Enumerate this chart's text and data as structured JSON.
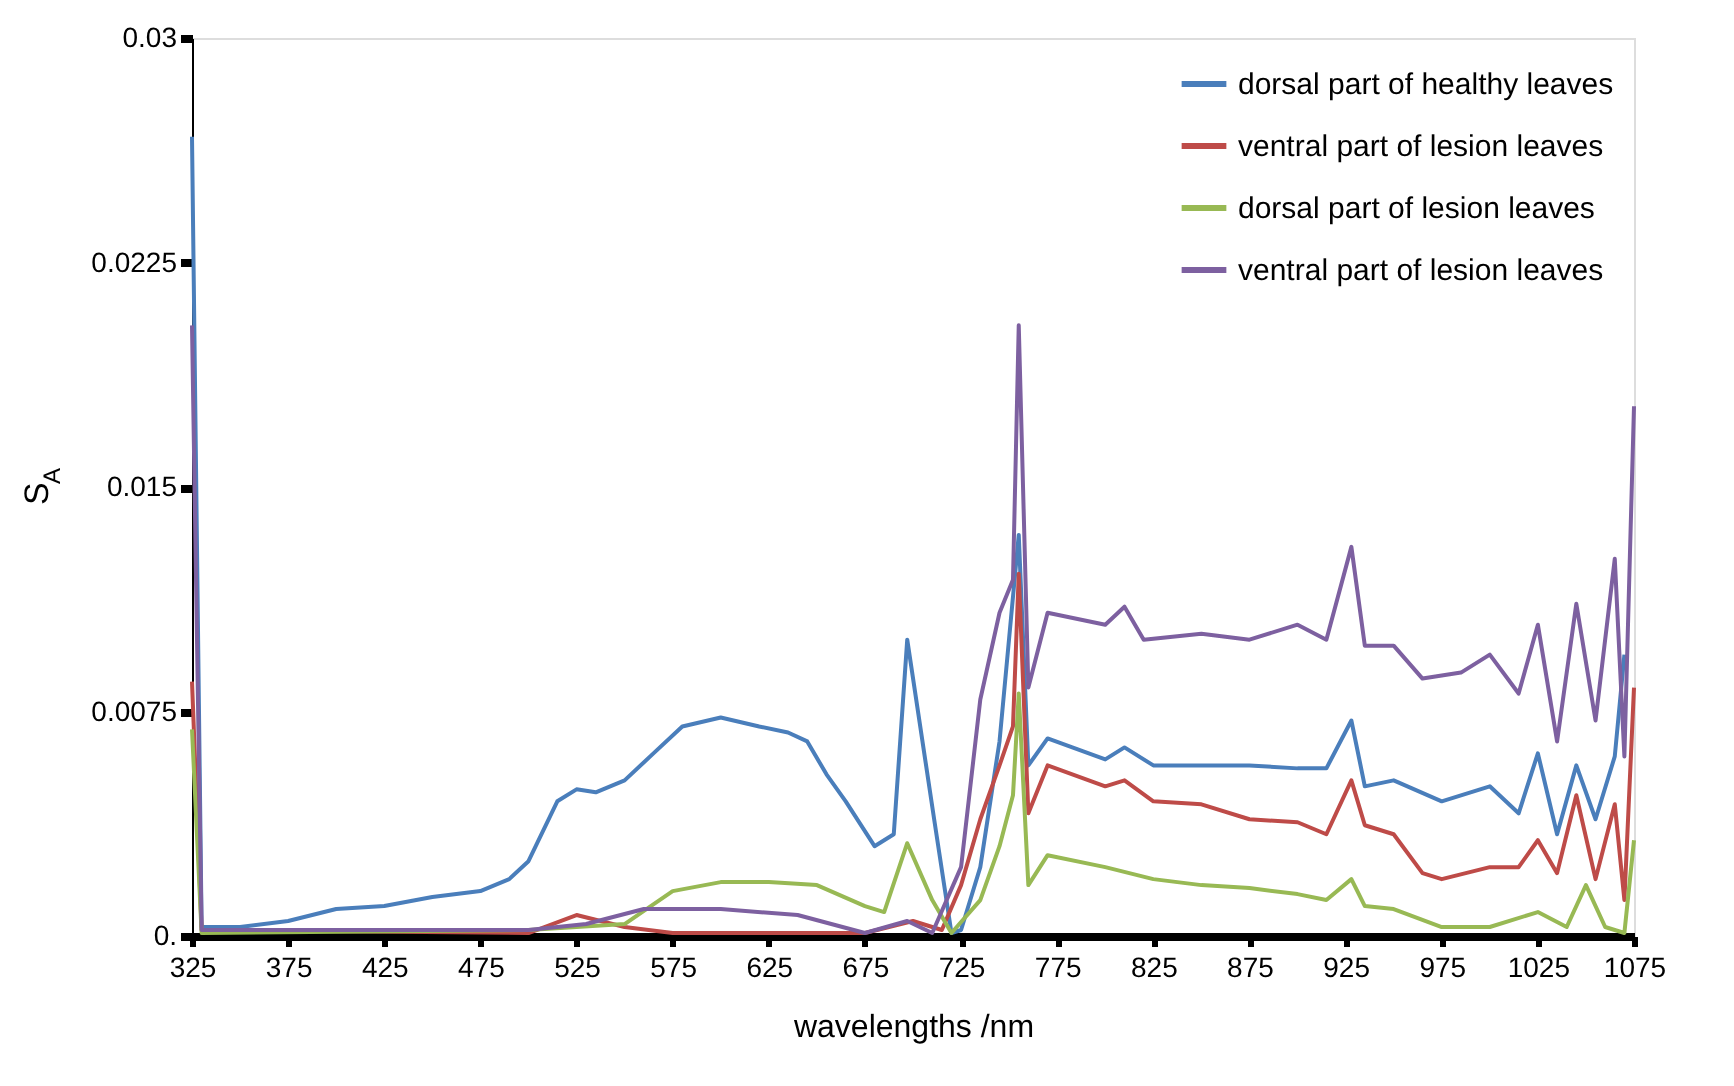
{
  "chart_data": {
    "type": "line",
    "xlabel": "wavelengths /nm",
    "ylabel": "S$_{A}$",
    "xlim": [
      325,
      1075
    ],
    "xticks": [
      325,
      375,
      425,
      475,
      525,
      575,
      625,
      675,
      725,
      775,
      825,
      875,
      925,
      975,
      1025,
      1075
    ],
    "ylim": [
      0,
      0.03
    ],
    "yticks": [
      {
        "value": 0,
        "label": "0."
      },
      0.0075,
      0.015,
      0.0225,
      0.03
    ],
    "grid": false,
    "legend": "top right",
    "marker": "none",
    "line_style": "solid",
    "series": [
      {
        "name": "dorsal part of healthy leaves",
        "color": "#4a7ebb",
        "x": [
          325,
          330,
          350,
          375,
          400,
          425,
          450,
          475,
          490,
          500,
          515,
          525,
          535,
          550,
          565,
          580,
          600,
          620,
          635,
          645,
          655,
          665,
          680,
          690,
          697,
          711,
          720,
          725,
          735,
          745,
          755,
          760,
          770,
          800,
          810,
          825,
          850,
          875,
          900,
          915,
          928,
          935,
          950,
          975,
          1000,
          1015,
          1025,
          1035,
          1045,
          1055,
          1065,
          1070
        ],
        "values": [
          0.0267,
          0.0003,
          0.0003,
          0.0005,
          0.0009,
          0.001,
          0.0013,
          0.0015,
          0.0019,
          0.0025,
          0.0045,
          0.0049,
          0.0048,
          0.0052,
          0.0061,
          0.007,
          0.0073,
          0.007,
          0.0068,
          0.0065,
          0.0054,
          0.0045,
          0.003,
          0.0034,
          0.0099,
          0.0039,
          0.0001,
          0.0002,
          0.0023,
          0.0065,
          0.0134,
          0.0057,
          0.0066,
          0.0059,
          0.0063,
          0.0057,
          0.0057,
          0.0057,
          0.0056,
          0.0056,
          0.0072,
          0.005,
          0.0052,
          0.0045,
          0.005,
          0.0041,
          0.0061,
          0.0034,
          0.0057,
          0.0039,
          0.006,
          0.0094
        ]
      },
      {
        "name": "ventral part of lesion leaves",
        "color": "#be4b48",
        "x": [
          325,
          330,
          500,
          525,
          550,
          575,
          625,
          675,
          700,
          715,
          725,
          735,
          745,
          752,
          755,
          760,
          770,
          800,
          810,
          825,
          850,
          875,
          900,
          915,
          928,
          935,
          950,
          965,
          975,
          1000,
          1015,
          1025,
          1035,
          1045,
          1055,
          1065,
          1070,
          1075
        ],
        "values": [
          0.0085,
          0.0002,
          0.0001,
          0.0007,
          0.0003,
          0.0001,
          0.0001,
          0.0001,
          0.0005,
          0.0002,
          0.0017,
          0.0039,
          0.0057,
          0.007,
          0.0121,
          0.0041,
          0.0057,
          0.005,
          0.0052,
          0.0045,
          0.0044,
          0.0039,
          0.0038,
          0.0034,
          0.0052,
          0.0037,
          0.0034,
          0.0021,
          0.0019,
          0.0023,
          0.0023,
          0.0032,
          0.0021,
          0.0047,
          0.0019,
          0.0044,
          0.0012,
          0.0083
        ]
      },
      {
        "name": "dorsal part of lesion leaves",
        "color": "#98b954",
        "x": [
          325,
          330,
          500,
          550,
          575,
          600,
          625,
          650,
          675,
          685,
          697,
          710,
          720,
          735,
          745,
          752,
          755,
          760,
          770,
          800,
          825,
          850,
          875,
          900,
          915,
          928,
          935,
          950,
          975,
          1000,
          1025,
          1040,
          1050,
          1060,
          1070,
          1075
        ],
        "values": [
          0.0069,
          0.0001,
          0.0002,
          0.0004,
          0.0015,
          0.0018,
          0.0018,
          0.0017,
          0.001,
          0.0008,
          0.0031,
          0.0012,
          0.0001,
          0.0012,
          0.003,
          0.0047,
          0.0081,
          0.0017,
          0.0027,
          0.0023,
          0.0019,
          0.0017,
          0.0016,
          0.0014,
          0.0012,
          0.0019,
          0.001,
          0.0009,
          0.0003,
          0.0003,
          0.0008,
          0.0003,
          0.0017,
          0.0003,
          0.0001,
          0.0032
        ]
      },
      {
        "name": "ventral part of lesion leaves",
        "color": "#7d60a0",
        "x": [
          325,
          330,
          500,
          530,
          560,
          600,
          640,
          675,
          697,
          710,
          725,
          735,
          745,
          752,
          755,
          760,
          770,
          800,
          810,
          820,
          850,
          875,
          900,
          915,
          928,
          935,
          950,
          965,
          985,
          1000,
          1015,
          1025,
          1035,
          1045,
          1055,
          1065,
          1070,
          1075
        ],
        "values": [
          0.0204,
          0.0002,
          0.0002,
          0.0004,
          0.0009,
          0.0009,
          0.0007,
          0.0001,
          0.0005,
          0.0001,
          0.0023,
          0.0079,
          0.0108,
          0.0119,
          0.0204,
          0.0083,
          0.0108,
          0.0104,
          0.011,
          0.0099,
          0.0101,
          0.0099,
          0.0104,
          0.0099,
          0.013,
          0.0097,
          0.0097,
          0.0086,
          0.0088,
          0.0094,
          0.0081,
          0.0104,
          0.0065,
          0.0111,
          0.0072,
          0.0126,
          0.006,
          0.0177
        ]
      }
    ]
  }
}
